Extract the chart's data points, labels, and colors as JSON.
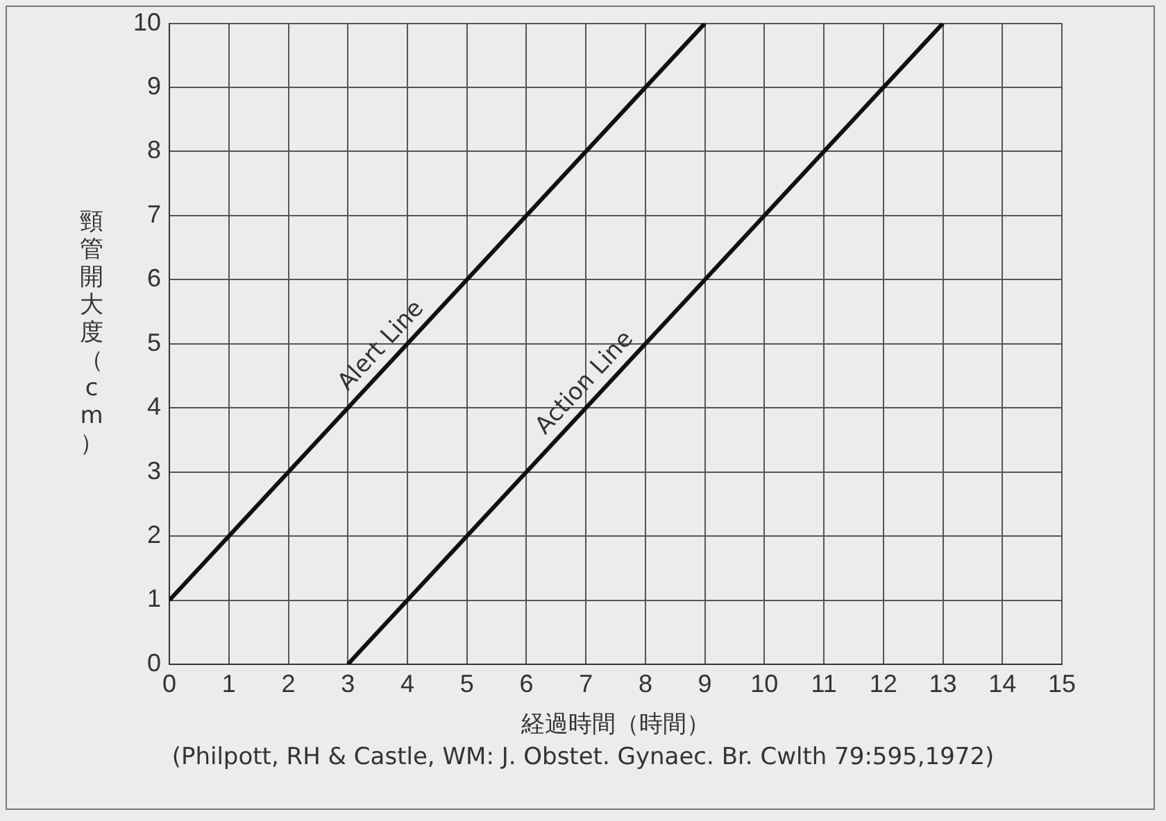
{
  "chart_data": {
    "type": "line",
    "xlabel": "経過時間（時間）",
    "ylabel": "頸管開大度（cm）",
    "annotations": [
      "(Philpott, RH & Castle, WM: J. Obstet. Gynaec. Br. Cwlth 79:595,1972)"
    ],
    "series": [
      {
        "name": "Alert Line",
        "color": "#111111",
        "x": [
          0,
          9
        ],
        "values": [
          1,
          10
        ]
      },
      {
        "name": "Action Line",
        "color": "#111111",
        "x": [
          3,
          13
        ],
        "values": [
          0,
          10
        ]
      }
    ],
    "xlim": [
      0,
      15
    ],
    "xticks": [
      0,
      1,
      2,
      3,
      4,
      5,
      6,
      7,
      8,
      9,
      10,
      11,
      12,
      13,
      14,
      15
    ],
    "ylim": [
      0,
      10
    ],
    "yticks": [
      0,
      1,
      2,
      3,
      4,
      5,
      6,
      7,
      8,
      9,
      10
    ],
    "grid": true,
    "legend": false,
    "marker": "none",
    "line_style": "solid"
  }
}
